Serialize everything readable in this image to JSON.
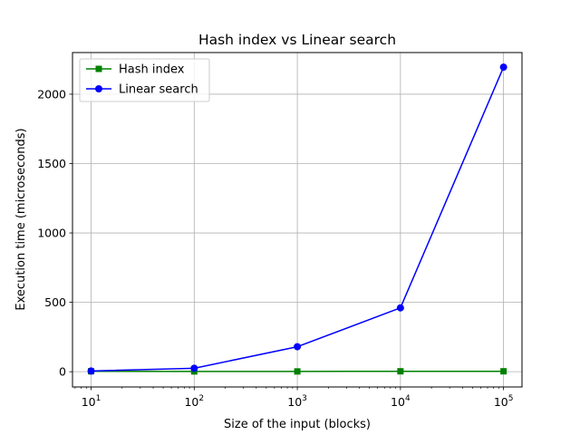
{
  "chart_data": {
    "type": "line",
    "title": "Hash index vs Linear search",
    "xlabel": "Size of the input (blocks)",
    "ylabel": "Execution time (microseconds)",
    "xscale": "log",
    "x": [
      10,
      100,
      1000,
      10000,
      100000
    ],
    "x_ticks": [
      {
        "base": "10",
        "exp": "1"
      },
      {
        "base": "10",
        "exp": "2"
      },
      {
        "base": "10",
        "exp": "3"
      },
      {
        "base": "10",
        "exp": "4"
      },
      {
        "base": "10",
        "exp": "5"
      }
    ],
    "xlim": [
      6.6,
      151000
    ],
    "ylim": [
      -110,
      2300
    ],
    "y_ticks": [
      0,
      500,
      1000,
      1500,
      2000
    ],
    "grid": true,
    "legend_position": "upper-left",
    "series": [
      {
        "name": "Hash index",
        "values": [
          3,
          2,
          2,
          3,
          3
        ],
        "color": "#008000",
        "marker": "square"
      },
      {
        "name": "Linear search",
        "values": [
          5,
          25,
          180,
          460,
          2195
        ],
        "color": "#0000ff",
        "marker": "circle"
      }
    ]
  }
}
